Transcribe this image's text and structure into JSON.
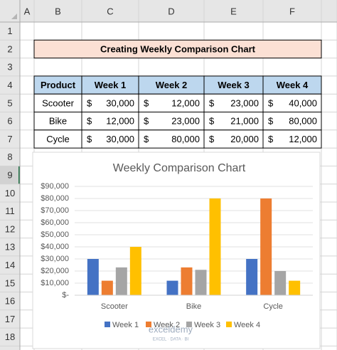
{
  "sheet": {
    "columns": [
      "A",
      "B",
      "C",
      "D",
      "E",
      "F"
    ],
    "rows": [
      "1",
      "2",
      "3",
      "4",
      "5",
      "6",
      "7",
      "8",
      "9",
      "10",
      "11",
      "12",
      "13",
      "14",
      "15",
      "16",
      "17",
      "18"
    ],
    "title": "Creating Weekly Comparison Chart",
    "table": {
      "header": [
        "Product",
        "Week 1",
        "Week 2",
        "Week 3",
        "Week 4"
      ],
      "currency": "$",
      "rows": [
        [
          "Scooter",
          "30,000",
          "12,000",
          "23,000",
          "40,000"
        ],
        [
          "Bike",
          "12,000",
          "23,000",
          "21,000",
          "80,000"
        ],
        [
          "Cycle",
          "30,000",
          "80,000",
          "20,000",
          "12,000"
        ]
      ]
    }
  },
  "chart_data": {
    "type": "bar",
    "title": "Weekly Comparison Chart",
    "categories": [
      "Scooter",
      "Bike",
      "Cycle"
    ],
    "series": [
      {
        "name": "Week 1",
        "color": "#4472c4",
        "values": [
          30000,
          12000,
          30000
        ]
      },
      {
        "name": "Week 2",
        "color": "#ed7d31",
        "values": [
          12000,
          23000,
          80000
        ]
      },
      {
        "name": "Week 3",
        "color": "#a5a5a5",
        "values": [
          23000,
          21000,
          20000
        ]
      },
      {
        "name": "Week 4",
        "color": "#ffc000",
        "values": [
          40000,
          80000,
          12000
        ]
      }
    ],
    "ylim": [
      0,
      90000
    ],
    "yticks": [
      {
        "value": 0,
        "label": "$-"
      },
      {
        "value": 10000,
        "label": "$10,000"
      },
      {
        "value": 20000,
        "label": "$20,000"
      },
      {
        "value": 30000,
        "label": "$30,000"
      },
      {
        "value": 40000,
        "label": "$40,000"
      },
      {
        "value": 50000,
        "label": "$50,000"
      },
      {
        "value": 60000,
        "label": "$60,000"
      },
      {
        "value": 70000,
        "label": "$70,000"
      },
      {
        "value": 80000,
        "label": "$80,000"
      },
      {
        "value": 90000,
        "label": "$90,000"
      }
    ],
    "grid": true,
    "legend": "bottom"
  },
  "watermark": {
    "name": "exceldemy",
    "tagline": "EXCEL · DATA · BI"
  }
}
